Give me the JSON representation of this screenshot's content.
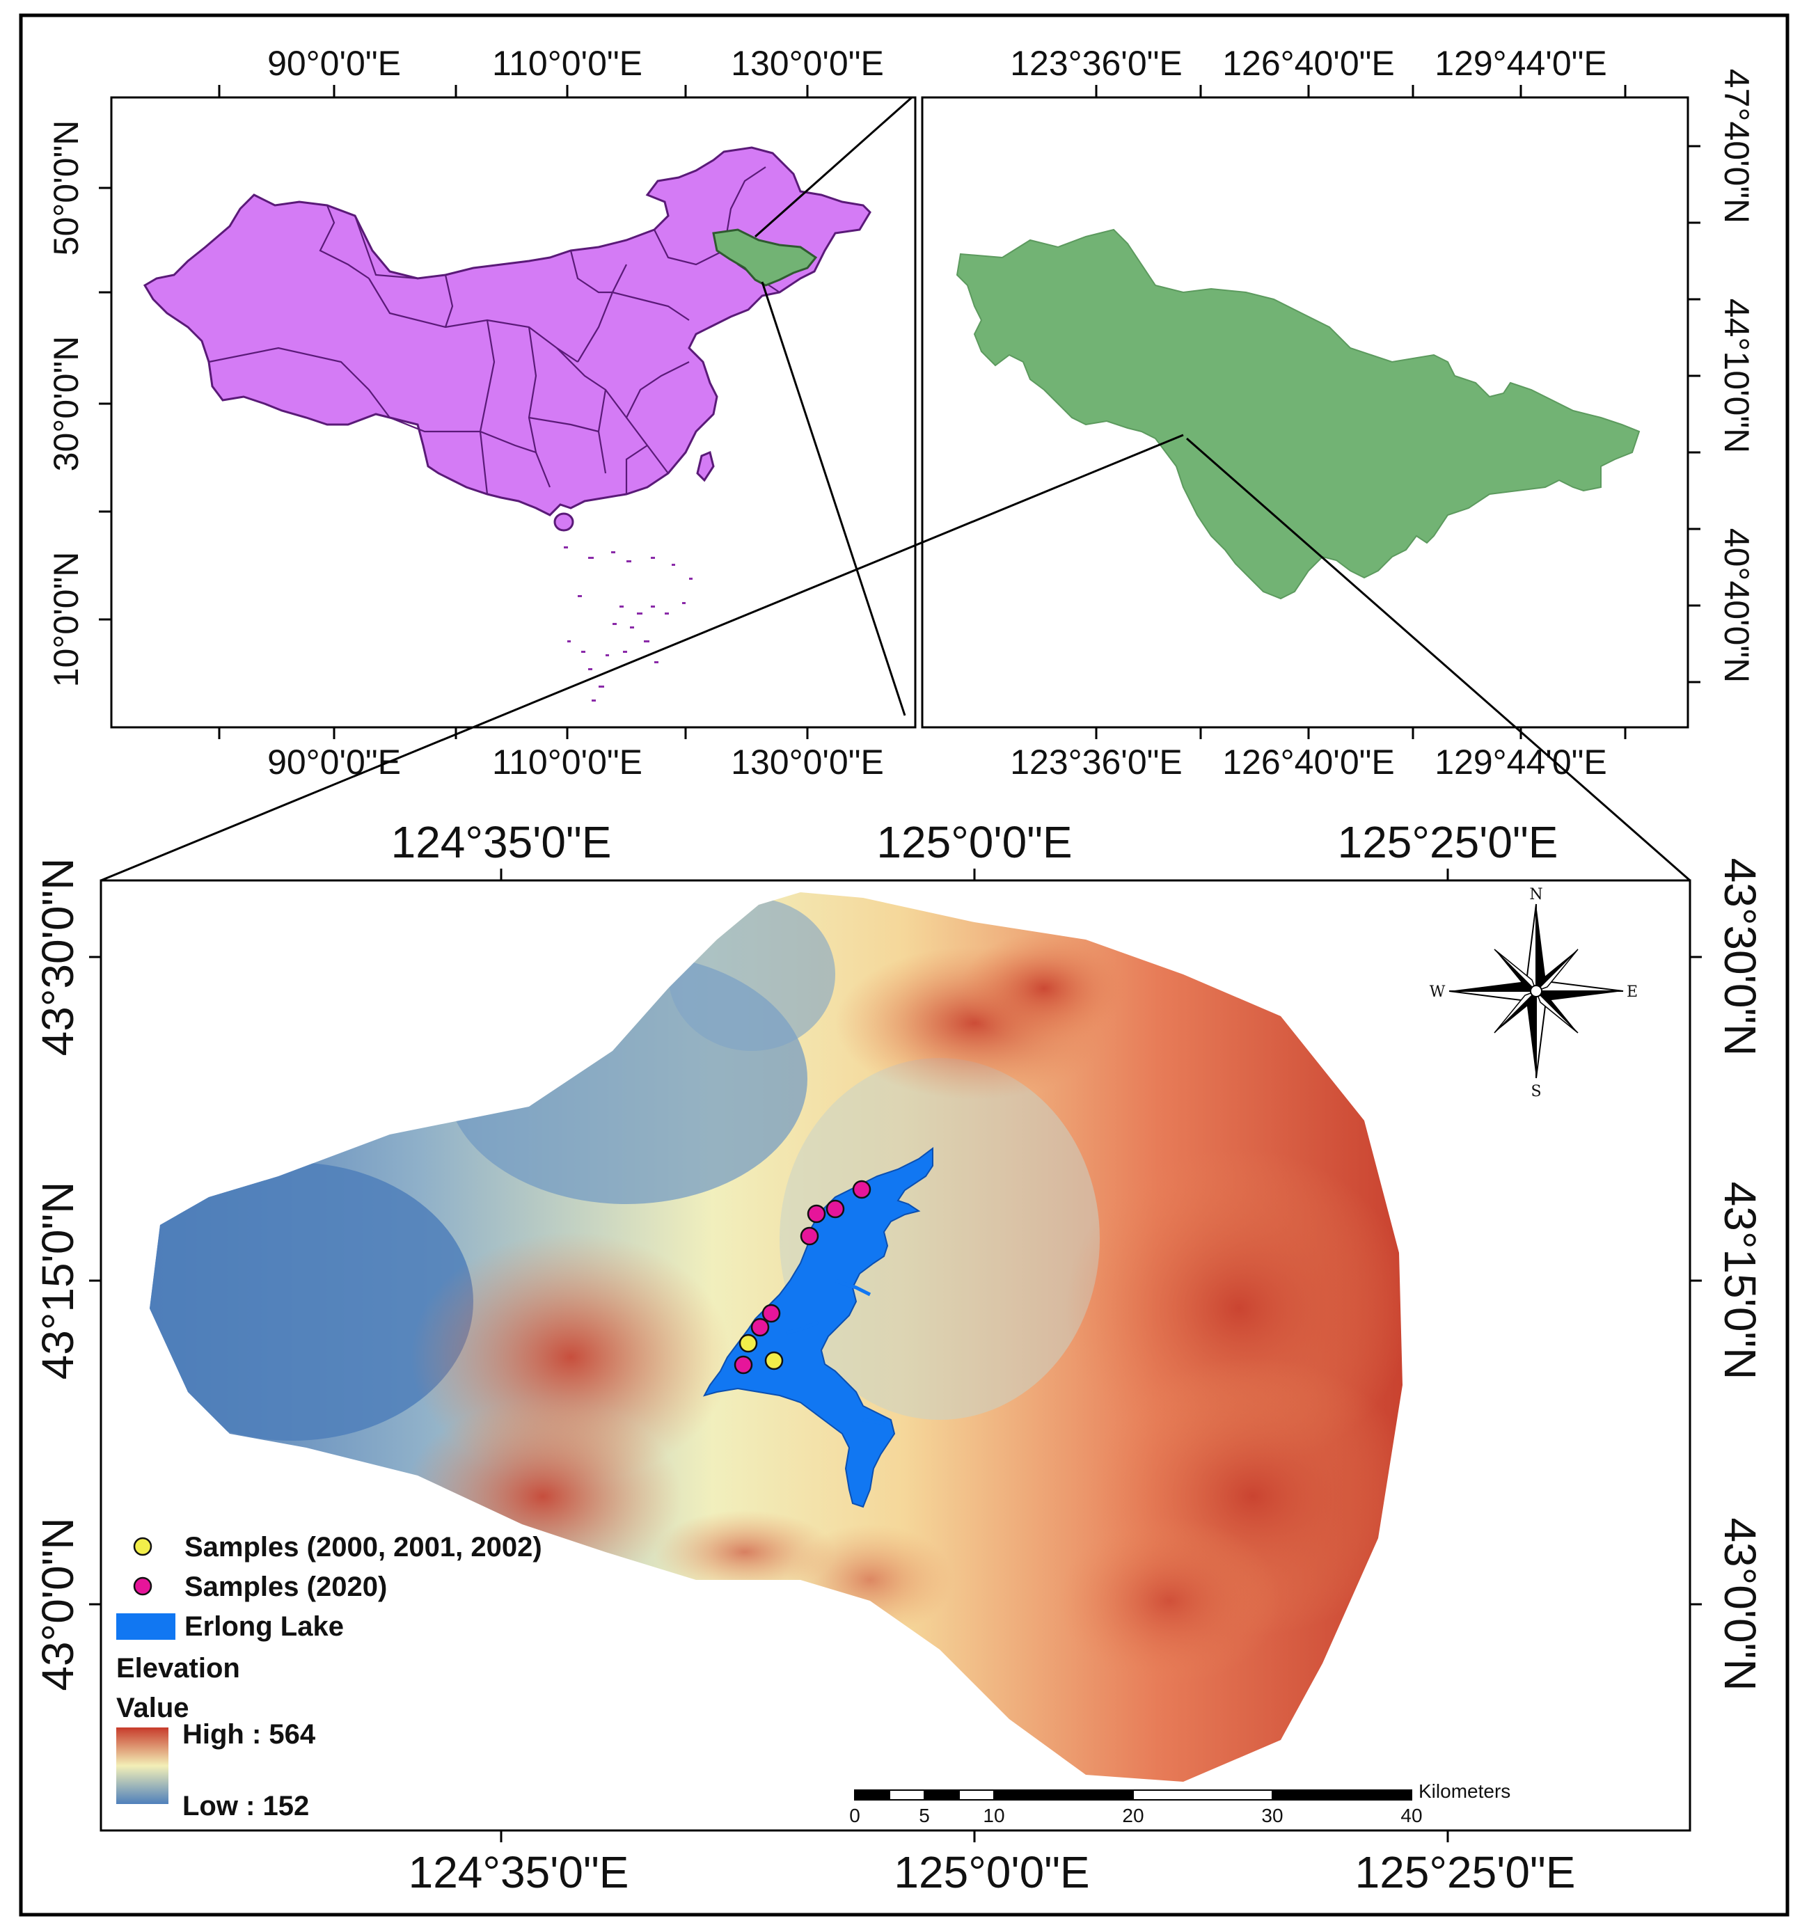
{
  "colors": {
    "china_fill": "#d47bf5",
    "china_stroke": "#5a1a78",
    "jilin_fill": "#72b374",
    "lake_fill": "#1177f2",
    "sample_old": "#f2ee4a",
    "sample_new": "#e6159a",
    "elev_high": "#c73b2b",
    "elev_mid": "#f3efb7",
    "elev_low": "#4f80bb"
  },
  "china_map": {
    "top_ticks": [
      "90°0'0\"E",
      "110°0'0\"E",
      "130°0'0\"E"
    ],
    "bottom_ticks": [
      "90°0'0\"E",
      "110°0'0\"E",
      "130°0'0\"E"
    ],
    "left_ticks": [
      "50°0'0\"N",
      "30°0'0\"N",
      "10°0'0\"N"
    ]
  },
  "jilin_map": {
    "top_ticks": [
      "123°36'0\"E",
      "126°40'0\"E",
      "129°44'0\"E"
    ],
    "bottom_ticks": [
      "123°36'0\"E",
      "126°40'0\"E",
      "129°44'0\"E"
    ],
    "right_ticks": [
      "47°40'0\"N",
      "44°10'0\"N",
      "40°40'0\"N"
    ]
  },
  "main_map": {
    "top_ticks": [
      "124°35'0\"E",
      "125°0'0\"E",
      "125°25'0\"E"
    ],
    "bottom_ticks": [
      "124°35'0\"E",
      "125°0'0\"E",
      "125°25'0\"E"
    ],
    "left_ticks": [
      "43°30'0\"N",
      "43°15'0\"N",
      "43°0'0\"N"
    ],
    "right_ticks": [
      "43°30'0\"N",
      "43°15'0\"N",
      "43°0'0\"N"
    ]
  },
  "compass": {
    "n": "N",
    "s": "S",
    "e": "E",
    "w": "W"
  },
  "legend": {
    "samples_old": "Samples (2000, 2001, 2002)",
    "samples_new": "Samples (2020)",
    "lake": "Erlong Lake",
    "elevation_title": "Elevation",
    "value_label": "Value",
    "high": "High : 564",
    "low": "Low : 152"
  },
  "scale_bar": {
    "unit": "Kilometers",
    "labels": [
      "0",
      "5",
      "10",
      "20",
      "30",
      "40"
    ]
  }
}
